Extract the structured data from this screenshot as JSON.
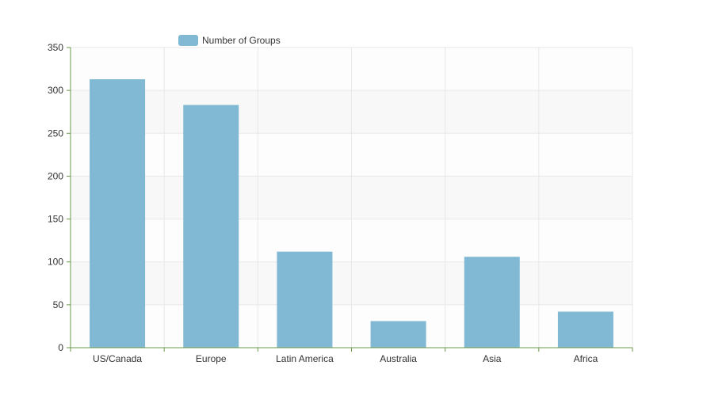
{
  "chart_data": {
    "type": "bar",
    "categories": [
      "US/Canada",
      "Europe",
      "Latin America",
      "Australia",
      "Asia",
      "Africa"
    ],
    "series": [
      {
        "name": "Number of Groups",
        "values": [
          313,
          283,
          112,
          31,
          106,
          42
        ]
      }
    ],
    "ylim": [
      0,
      350
    ],
    "yticks": [
      0,
      50,
      100,
      150,
      200,
      250,
      300,
      350
    ],
    "grid": true,
    "legend": "top-left",
    "colors": {
      "bar": "#81b9d4",
      "axis": "#6a9a4a",
      "grid": "#e8e8e8",
      "band": "#f8f8f8"
    }
  }
}
